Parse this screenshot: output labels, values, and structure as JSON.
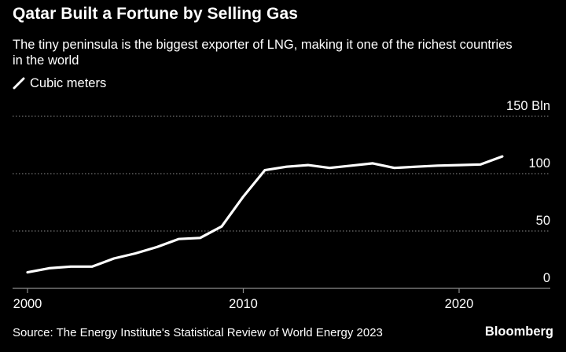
{
  "header": {
    "title": "Qatar Built a Fortune by Selling Gas",
    "subtitle": "The tiny peninsula is the biggest exporter of LNG, making it one of the richest countries in the world"
  },
  "legend": {
    "label": "Cubic meters"
  },
  "footer": {
    "source": "Source: The Energy Institute's Statistical Review of World Energy 2023",
    "brand": "Bloomberg"
  },
  "colors": {
    "background": "#000000",
    "line": "#ffffff",
    "grid": "#8c8c8c",
    "text": "#ffffff"
  },
  "chart_data": {
    "type": "line",
    "title": "Qatar Built a Fortune by Selling Gas",
    "subtitle": "The tiny peninsula is the biggest exporter of LNG, making it one of the richest countries in the world",
    "xlabel": "",
    "ylabel": "",
    "xlim": [
      2000,
      2024
    ],
    "ylim": [
      0,
      150
    ],
    "x_ticks": [
      "2000",
      "2010",
      "2020"
    ],
    "x_tick_values": [
      2000,
      2010,
      2020
    ],
    "y_ticks": [
      "0",
      "50",
      "100",
      "150 Bln"
    ],
    "y_tick_values": [
      0,
      50,
      100,
      150
    ],
    "grid": true,
    "legend_position": "top-left",
    "series": [
      {
        "name": "Cubic meters",
        "x": [
          2000,
          2001,
          2002,
          2003,
          2004,
          2005,
          2006,
          2007,
          2008,
          2009,
          2010,
          2011,
          2012,
          2013,
          2014,
          2015,
          2016,
          2017,
          2018,
          2019,
          2020,
          2021,
          2022
        ],
        "values": [
          14,
          17.5,
          19,
          19,
          26,
          30.5,
          36,
          43,
          44,
          54,
          80,
          103,
          106,
          107.5,
          105,
          107,
          109,
          105,
          106,
          107,
          107.5,
          108,
          115
        ]
      }
    ]
  }
}
